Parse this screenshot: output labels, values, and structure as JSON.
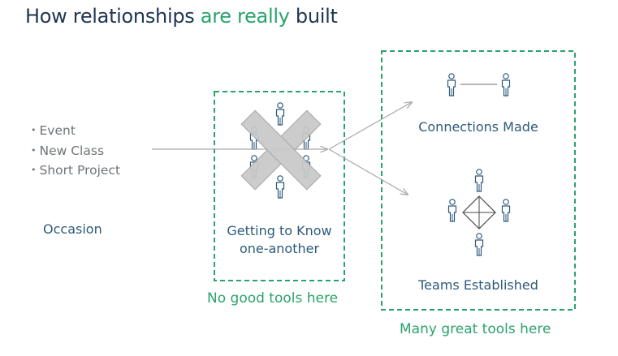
{
  "title": {
    "part1": "How relationships ",
    "highlight": "are really",
    "part2": " built"
  },
  "colors": {
    "title": "#1f3552",
    "accent_green": "#2aa36b",
    "label_blue": "#2c5a7a",
    "bullet_gray": "#6f7478",
    "arrow_gray": "#a8a8a8",
    "x_fill": "#c9c9c9"
  },
  "occasion": {
    "items": [
      "Event",
      "New Class",
      "Short Project"
    ],
    "label": "Occasion"
  },
  "middle": {
    "label_line1": "Getting to Know",
    "label_line2": "one-another",
    "caption": "No good tools here",
    "icon": "crossed-out-x-icon"
  },
  "right": {
    "connections_label": "Connections Made",
    "teams_label": "Teams Established",
    "caption": "Many great tools here"
  }
}
